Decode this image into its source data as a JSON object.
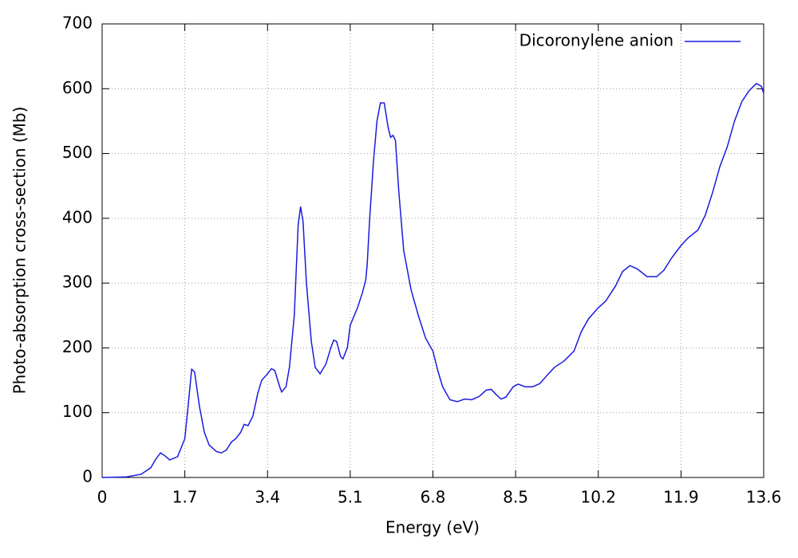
{
  "chart_data": {
    "type": "line",
    "xlabel": "Energy (eV)",
    "ylabel": "Photo-absorption cross-section (Mb)",
    "x": [
      0,
      0.5,
      0.8,
      1.0,
      1.1,
      1.2,
      1.3,
      1.39,
      1.55,
      1.7,
      1.78,
      1.84,
      1.9,
      2.0,
      2.1,
      2.2,
      2.35,
      2.45,
      2.55,
      2.66,
      2.75,
      2.85,
      2.92,
      3.0,
      3.1,
      3.2,
      3.28,
      3.4,
      3.48,
      3.55,
      3.65,
      3.69,
      3.78,
      3.85,
      3.95,
      4.03,
      4.08,
      4.13,
      4.2,
      4.3,
      4.38,
      4.48,
      4.6,
      4.7,
      4.76,
      4.82,
      4.9,
      4.95,
      5.04,
      5.1,
      5.25,
      5.35,
      5.42,
      5.45,
      5.5,
      5.58,
      5.65,
      5.72,
      5.8,
      5.88,
      5.93,
      5.98,
      6.03,
      6.1,
      6.2,
      6.35,
      6.5,
      6.65,
      6.8,
      6.9,
      7.0,
      7.15,
      7.3,
      7.45,
      7.6,
      7.75,
      7.9,
      8.0,
      8.1,
      8.2,
      8.3,
      8.45,
      8.55,
      8.7,
      8.85,
      9.0,
      9.15,
      9.3,
      9.5,
      9.7,
      9.85,
      10.0,
      10.2,
      10.35,
      10.55,
      10.7,
      10.85,
      11.0,
      11.2,
      11.4,
      11.55,
      11.7,
      11.9,
      12.05,
      12.25,
      12.4,
      12.55,
      12.7,
      12.85,
      13.0,
      13.15,
      13.3,
      13.45,
      13.55,
      13.6
    ],
    "series": [
      {
        "name": "Dicoronylene anion",
        "color": "#1a1ae0",
        "values": [
          0,
          1,
          5,
          15,
          28,
          38,
          33,
          27,
          32,
          60,
          120,
          167,
          163,
          110,
          70,
          50,
          40,
          38,
          42,
          55,
          60,
          70,
          82,
          80,
          95,
          130,
          150,
          160,
          168,
          165,
          140,
          132,
          140,
          170,
          250,
          390,
          418,
          395,
          300,
          210,
          170,
          160,
          175,
          200,
          212,
          210,
          187,
          183,
          200,
          235,
          262,
          285,
          305,
          330,
          400,
          490,
          550,
          578,
          578,
          540,
          525,
          528,
          520,
          440,
          350,
          290,
          250,
          215,
          195,
          165,
          140,
          120,
          117,
          121,
          120,
          125,
          135,
          136,
          128,
          121,
          124,
          140,
          144,
          140,
          140,
          145,
          158,
          170,
          180,
          195,
          225,
          245,
          262,
          272,
          295,
          318,
          327,
          322,
          310,
          310,
          320,
          338,
          358,
          370,
          382,
          405,
          440,
          480,
          510,
          550,
          580,
          597,
          608,
          604,
          593
        ]
      }
    ],
    "xlim": [
      0,
      13.6
    ],
    "ylim": [
      0,
      700
    ],
    "xticks": [
      0,
      1.7,
      3.4,
      5.1,
      6.8,
      8.5,
      10.2,
      11.9,
      13.6
    ],
    "yticks": [
      0,
      100,
      200,
      300,
      400,
      500,
      600,
      700
    ],
    "grid": true,
    "legend": "top-right"
  }
}
